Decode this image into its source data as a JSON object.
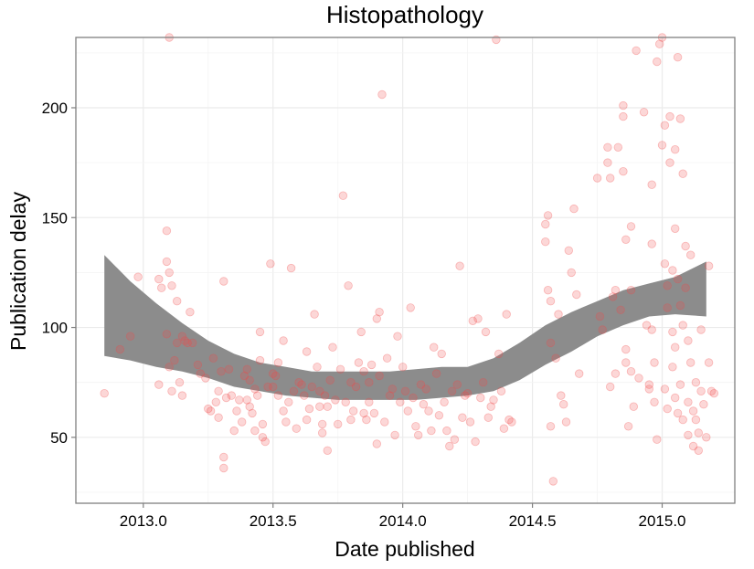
{
  "chart_data": {
    "type": "scatter",
    "title": "Histopathology",
    "xlabel": "Date published",
    "ylabel": "Publication delay",
    "xlim": [
      2012.74,
      2015.28
    ],
    "ylim": [
      20,
      232
    ],
    "xticks": [
      2013.0,
      2013.5,
      2014.0,
      2014.5,
      2015.0
    ],
    "xtick_labels": [
      "2013.0",
      "2013.5",
      "2014.0",
      "2014.5",
      "2015.0"
    ],
    "yticks": [
      50,
      100,
      150,
      200
    ],
    "ytick_labels": [
      "50",
      "100",
      "150",
      "200"
    ],
    "grid": true,
    "legend": "none",
    "colors": {
      "points": "#f24a4a",
      "band": "#8c8c8c",
      "grid": "#ebebeb",
      "frame": "#7f7f7f"
    },
    "points": [
      [
        2012.85,
        70
      ],
      [
        2012.91,
        90
      ],
      [
        2012.95,
        96
      ],
      [
        2012.98,
        123
      ],
      [
        2013.06,
        122
      ],
      [
        2013.06,
        74
      ],
      [
        2013.07,
        118
      ],
      [
        2013.09,
        130
      ],
      [
        2013.09,
        144
      ],
      [
        2013.09,
        97
      ],
      [
        2013.1,
        232
      ],
      [
        2013.1,
        125
      ],
      [
        2013.1,
        82
      ],
      [
        2013.11,
        119
      ],
      [
        2013.11,
        71
      ],
      [
        2013.12,
        85
      ],
      [
        2013.13,
        112
      ],
      [
        2013.13,
        93
      ],
      [
        2013.14,
        75
      ],
      [
        2013.15,
        96
      ],
      [
        2013.15,
        69
      ],
      [
        2013.16,
        94
      ],
      [
        2013.17,
        93
      ],
      [
        2013.18,
        107
      ],
      [
        2013.19,
        93
      ],
      [
        2013.21,
        83
      ],
      [
        2013.22,
        79
      ],
      [
        2013.24,
        77
      ],
      [
        2013.25,
        63
      ],
      [
        2013.26,
        62
      ],
      [
        2013.27,
        86
      ],
      [
        2013.28,
        66
      ],
      [
        2013.29,
        59
      ],
      [
        2013.29,
        71
      ],
      [
        2013.3,
        80
      ],
      [
        2013.31,
        121
      ],
      [
        2013.31,
        41
      ],
      [
        2013.31,
        36
      ],
      [
        2013.32,
        68
      ],
      [
        2013.33,
        81
      ],
      [
        2013.34,
        69
      ],
      [
        2013.35,
        53
      ],
      [
        2013.36,
        62
      ],
      [
        2013.37,
        67
      ],
      [
        2013.38,
        57
      ],
      [
        2013.39,
        78
      ],
      [
        2013.4,
        81
      ],
      [
        2013.4,
        67
      ],
      [
        2013.41,
        64
      ],
      [
        2013.41,
        76
      ],
      [
        2013.42,
        61
      ],
      [
        2013.43,
        53
      ],
      [
        2013.43,
        72
      ],
      [
        2013.44,
        69
      ],
      [
        2013.45,
        98
      ],
      [
        2013.45,
        85
      ],
      [
        2013.46,
        56
      ],
      [
        2013.46,
        50
      ],
      [
        2013.47,
        48
      ],
      [
        2013.48,
        73
      ],
      [
        2013.49,
        129
      ],
      [
        2013.5,
        73
      ],
      [
        2013.5,
        79
      ],
      [
        2013.51,
        78
      ],
      [
        2013.52,
        69
      ],
      [
        2013.52,
        84
      ],
      [
        2013.54,
        94
      ],
      [
        2013.54,
        62
      ],
      [
        2013.55,
        57
      ],
      [
        2013.56,
        66
      ],
      [
        2013.57,
        127
      ],
      [
        2013.58,
        71
      ],
      [
        2013.59,
        54
      ],
      [
        2013.6,
        75
      ],
      [
        2013.61,
        74
      ],
      [
        2013.62,
        69
      ],
      [
        2013.63,
        89
      ],
      [
        2013.63,
        58
      ],
      [
        2013.64,
        63
      ],
      [
        2013.65,
        73
      ],
      [
        2013.66,
        106
      ],
      [
        2013.67,
        82
      ],
      [
        2013.68,
        71
      ],
      [
        2013.68,
        64
      ],
      [
        2013.69,
        52
      ],
      [
        2013.69,
        56
      ],
      [
        2013.7,
        69
      ],
      [
        2013.71,
        44
      ],
      [
        2013.71,
        64
      ],
      [
        2013.72,
        76
      ],
      [
        2013.73,
        91
      ],
      [
        2013.74,
        67
      ],
      [
        2013.75,
        56
      ],
      [
        2013.76,
        81
      ],
      [
        2013.77,
        160
      ],
      [
        2013.78,
        66
      ],
      [
        2013.79,
        119
      ],
      [
        2013.8,
        75
      ],
      [
        2013.8,
        58
      ],
      [
        2013.81,
        62
      ],
      [
        2013.82,
        73
      ],
      [
        2013.83,
        84
      ],
      [
        2013.84,
        98
      ],
      [
        2013.85,
        80
      ],
      [
        2013.85,
        61
      ],
      [
        2013.86,
        58
      ],
      [
        2013.87,
        66
      ],
      [
        2013.87,
        75
      ],
      [
        2013.88,
        83
      ],
      [
        2013.89,
        61
      ],
      [
        2013.9,
        47
      ],
      [
        2013.9,
        104
      ],
      [
        2013.91,
        107
      ],
      [
        2013.91,
        78
      ],
      [
        2013.92,
        206
      ],
      [
        2013.93,
        57
      ],
      [
        2013.94,
        86
      ],
      [
        2013.95,
        69
      ],
      [
        2013.96,
        72
      ],
      [
        2013.97,
        51
      ],
      [
        2013.98,
        96
      ],
      [
        2013.99,
        66
      ],
      [
        2014.0,
        82
      ],
      [
        2014.01,
        71
      ],
      [
        2014.02,
        62
      ],
      [
        2014.03,
        109
      ],
      [
        2014.04,
        68
      ],
      [
        2014.05,
        55
      ],
      [
        2014.06,
        51
      ],
      [
        2014.07,
        74
      ],
      [
        2014.08,
        65
      ],
      [
        2014.09,
        72
      ],
      [
        2014.1,
        62
      ],
      [
        2014.11,
        53
      ],
      [
        2014.12,
        91
      ],
      [
        2014.13,
        79
      ],
      [
        2014.14,
        60
      ],
      [
        2014.15,
        88
      ],
      [
        2014.16,
        66
      ],
      [
        2014.17,
        53
      ],
      [
        2014.18,
        46
      ],
      [
        2014.19,
        71
      ],
      [
        2014.2,
        49
      ],
      [
        2014.21,
        74
      ],
      [
        2014.22,
        128
      ],
      [
        2014.23,
        59
      ],
      [
        2014.24,
        69
      ],
      [
        2014.25,
        70
      ],
      [
        2014.26,
        57
      ],
      [
        2014.27,
        103
      ],
      [
        2014.28,
        48
      ],
      [
        2014.29,
        104
      ],
      [
        2014.3,
        68
      ],
      [
        2014.31,
        75
      ],
      [
        2014.32,
        98
      ],
      [
        2014.33,
        59
      ],
      [
        2014.34,
        64
      ],
      [
        2014.35,
        67
      ],
      [
        2014.36,
        231
      ],
      [
        2014.37,
        88
      ],
      [
        2014.38,
        71
      ],
      [
        2014.39,
        54
      ],
      [
        2014.4,
        106
      ],
      [
        2014.41,
        58
      ],
      [
        2014.42,
        57
      ],
      [
        2014.55,
        139
      ],
      [
        2014.55,
        147
      ],
      [
        2014.56,
        117
      ],
      [
        2014.56,
        151
      ],
      [
        2014.57,
        93
      ],
      [
        2014.57,
        112
      ],
      [
        2014.57,
        55
      ],
      [
        2014.58,
        30
      ],
      [
        2014.59,
        86
      ],
      [
        2014.6,
        106
      ],
      [
        2014.61,
        69
      ],
      [
        2014.62,
        65
      ],
      [
        2014.63,
        57
      ],
      [
        2014.64,
        135
      ],
      [
        2014.65,
        125
      ],
      [
        2014.66,
        154
      ],
      [
        2014.67,
        115
      ],
      [
        2014.68,
        79
      ],
      [
        2014.75,
        168
      ],
      [
        2014.76,
        105
      ],
      [
        2014.77,
        99
      ],
      [
        2014.79,
        182
      ],
      [
        2014.79,
        175
      ],
      [
        2014.8,
        73
      ],
      [
        2014.8,
        168
      ],
      [
        2014.81,
        114
      ],
      [
        2014.82,
        79
      ],
      [
        2014.82,
        117
      ],
      [
        2014.83,
        182
      ],
      [
        2014.84,
        108
      ],
      [
        2014.85,
        201
      ],
      [
        2014.85,
        196
      ],
      [
        2014.85,
        171
      ],
      [
        2014.86,
        140
      ],
      [
        2014.86,
        90
      ],
      [
        2014.86,
        84
      ],
      [
        2014.87,
        55
      ],
      [
        2014.88,
        146
      ],
      [
        2014.88,
        117
      ],
      [
        2014.88,
        80
      ],
      [
        2014.89,
        64
      ],
      [
        2014.9,
        226
      ],
      [
        2014.91,
        77
      ],
      [
        2014.93,
        198
      ],
      [
        2014.94,
        101
      ],
      [
        2014.95,
        74
      ],
      [
        2014.95,
        72
      ],
      [
        2014.96,
        165
      ],
      [
        2014.96,
        138
      ],
      [
        2014.96,
        99
      ],
      [
        2014.97,
        84
      ],
      [
        2014.97,
        66
      ],
      [
        2014.98,
        221
      ],
      [
        2014.98,
        49
      ],
      [
        2014.99,
        229
      ],
      [
        2015.0,
        232
      ],
      [
        2015.0,
        183
      ],
      [
        2015.01,
        192
      ],
      [
        2015.01,
        129
      ],
      [
        2015.01,
        72
      ],
      [
        2015.02,
        119
      ],
      [
        2015.02,
        109
      ],
      [
        2015.02,
        63
      ],
      [
        2015.03,
        196
      ],
      [
        2015.03,
        175
      ],
      [
        2015.04,
        126
      ],
      [
        2015.04,
        98
      ],
      [
        2015.04,
        82
      ],
      [
        2015.05,
        181
      ],
      [
        2015.05,
        145
      ],
      [
        2015.05,
        91
      ],
      [
        2015.05,
        68
      ],
      [
        2015.06,
        223
      ],
      [
        2015.06,
        122
      ],
      [
        2015.06,
        61
      ],
      [
        2015.07,
        195
      ],
      [
        2015.07,
        110
      ],
      [
        2015.07,
        74
      ],
      [
        2015.08,
        170
      ],
      [
        2015.08,
        101
      ],
      [
        2015.08,
        58
      ],
      [
        2015.09,
        137
      ],
      [
        2015.09,
        118
      ],
      [
        2015.1,
        94
      ],
      [
        2015.1,
        66
      ],
      [
        2015.1,
        51
      ],
      [
        2015.11,
        133
      ],
      [
        2015.11,
        84
      ],
      [
        2015.12,
        62
      ],
      [
        2015.12,
        46
      ],
      [
        2015.13,
        75
      ],
      [
        2015.13,
        58
      ],
      [
        2015.14,
        52
      ],
      [
        2015.14,
        44
      ],
      [
        2015.15,
        99
      ],
      [
        2015.15,
        71
      ],
      [
        2015.16,
        65
      ],
      [
        2015.17,
        50
      ],
      [
        2015.18,
        84
      ],
      [
        2015.18,
        128
      ],
      [
        2015.19,
        71
      ],
      [
        2015.2,
        70
      ]
    ],
    "smooth": [
      {
        "x": 2012.85,
        "lo": 87,
        "hi": 133
      },
      {
        "x": 2012.95,
        "lo": 85,
        "hi": 121
      },
      {
        "x": 2013.05,
        "lo": 82,
        "hi": 111
      },
      {
        "x": 2013.15,
        "lo": 80,
        "hi": 102
      },
      {
        "x": 2013.25,
        "lo": 77,
        "hi": 94
      },
      {
        "x": 2013.35,
        "lo": 73,
        "hi": 88
      },
      {
        "x": 2013.45,
        "lo": 71,
        "hi": 84
      },
      {
        "x": 2013.55,
        "lo": 69,
        "hi": 82
      },
      {
        "x": 2013.65,
        "lo": 68,
        "hi": 80
      },
      {
        "x": 2013.75,
        "lo": 67,
        "hi": 80
      },
      {
        "x": 2013.85,
        "lo": 67,
        "hi": 80
      },
      {
        "x": 2013.95,
        "lo": 67,
        "hi": 80
      },
      {
        "x": 2014.05,
        "lo": 67,
        "hi": 81
      },
      {
        "x": 2014.15,
        "lo": 68,
        "hi": 82
      },
      {
        "x": 2014.25,
        "lo": 69,
        "hi": 82
      },
      {
        "x": 2014.35,
        "lo": 71,
        "hi": 86
      },
      {
        "x": 2014.45,
        "lo": 76,
        "hi": 93
      },
      {
        "x": 2014.55,
        "lo": 83,
        "hi": 101
      },
      {
        "x": 2014.65,
        "lo": 89,
        "hi": 107
      },
      {
        "x": 2014.75,
        "lo": 96,
        "hi": 112
      },
      {
        "x": 2014.85,
        "lo": 101,
        "hi": 117
      },
      {
        "x": 2014.95,
        "lo": 105,
        "hi": 120
      },
      {
        "x": 2015.05,
        "lo": 106,
        "hi": 123
      },
      {
        "x": 2015.17,
        "lo": 105,
        "hi": 130
      }
    ]
  }
}
